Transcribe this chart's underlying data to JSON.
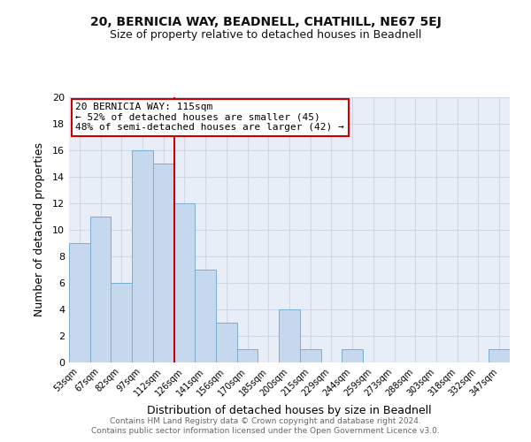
{
  "title": "20, BERNICIA WAY, BEADNELL, CHATHILL, NE67 5EJ",
  "subtitle": "Size of property relative to detached houses in Beadnell",
  "xlabel": "Distribution of detached houses by size in Beadnell",
  "ylabel": "Number of detached properties",
  "bin_labels": [
    "53sqm",
    "67sqm",
    "82sqm",
    "97sqm",
    "112sqm",
    "126sqm",
    "141sqm",
    "156sqm",
    "170sqm",
    "185sqm",
    "200sqm",
    "215sqm",
    "229sqm",
    "244sqm",
    "259sqm",
    "273sqm",
    "288sqm",
    "303sqm",
    "318sqm",
    "332sqm",
    "347sqm"
  ],
  "bar_heights": [
    9,
    11,
    6,
    16,
    15,
    12,
    7,
    3,
    1,
    0,
    4,
    1,
    0,
    1,
    0,
    0,
    0,
    0,
    0,
    0,
    1
  ],
  "bar_color": "#c5d8ed",
  "bar_edge_color": "#7aadd4",
  "vline_x_index": 4,
  "vline_color": "#cc0000",
  "annotation_line1": "20 BERNICIA WAY: 115sqm",
  "annotation_line2": "← 52% of detached houses are smaller (45)",
  "annotation_line3": "48% of semi-detached houses are larger (42) →",
  "annotation_box_color": "#ffffff",
  "annotation_box_edge_color": "#cc0000",
  "ylim": [
    0,
    20
  ],
  "yticks": [
    0,
    2,
    4,
    6,
    8,
    10,
    12,
    14,
    16,
    18,
    20
  ],
  "footer_line1": "Contains HM Land Registry data © Crown copyright and database right 2024.",
  "footer_line2": "Contains public sector information licensed under the Open Government Licence v3.0.",
  "grid_color": "#d0d8e8",
  "background_color": "#e8eef7",
  "plot_bg_color": "#e8eef7"
}
